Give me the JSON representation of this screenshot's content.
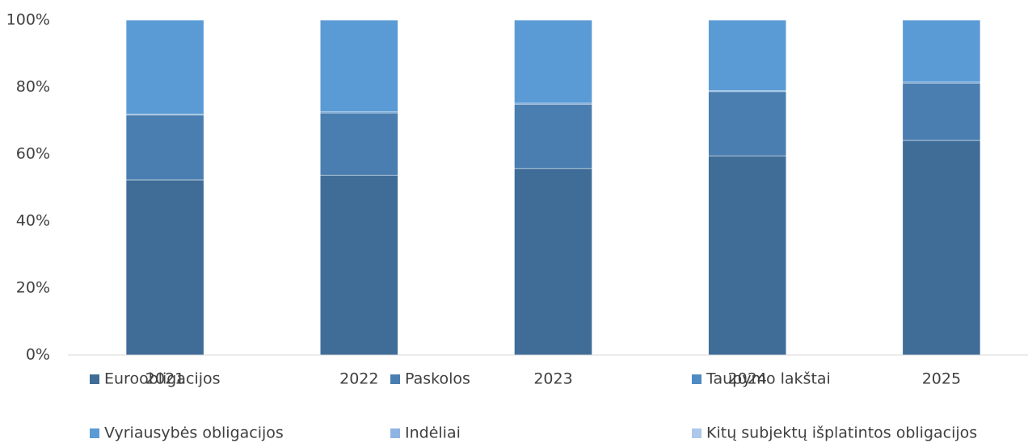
{
  "chart_data": {
    "type": "stacked_bar",
    "categories": [
      "2021",
      "2022",
      "2023",
      "2024",
      "2025"
    ],
    "series": [
      {
        "name": "Euroobligacijos",
        "color": "#406d97",
        "values": [
          52.3,
          53.7,
          55.7,
          59.5,
          64.1
        ]
      },
      {
        "name": "Paskolos",
        "color": "#4a7eb0",
        "values": [
          19.4,
          18.6,
          19.2,
          19.1,
          17.1
        ]
      },
      {
        "name": "Taupymo lakštai",
        "color": "#4f8ac4",
        "values": [
          0.3,
          0.3,
          0.3,
          0.3,
          0.3
        ]
      },
      {
        "name": "Vyriausybės obligacijos",
        "color": "#5b9bd5",
        "values": [
          28.0,
          27.4,
          24.8,
          21.1,
          18.5
        ]
      },
      {
        "name": "Indėliai",
        "color": "#8eb4e3",
        "values": [
          0,
          0,
          0,
          0,
          0
        ]
      },
      {
        "name": "Kitų subjektų išplatintos obligacijos",
        "color": "#adc8ea",
        "values": [
          0,
          0,
          0,
          0,
          0
        ]
      }
    ],
    "ylim": [
      0,
      100
    ],
    "yticks": [
      {
        "value": 0,
        "label": "0%"
      },
      {
        "value": 20,
        "label": "20%"
      },
      {
        "value": 40,
        "label": "40%"
      },
      {
        "value": 60,
        "label": "60%"
      },
      {
        "value": 80,
        "label": "80%"
      },
      {
        "value": 100,
        "label": "100%"
      }
    ],
    "grid": false,
    "legend": "bottom"
  }
}
